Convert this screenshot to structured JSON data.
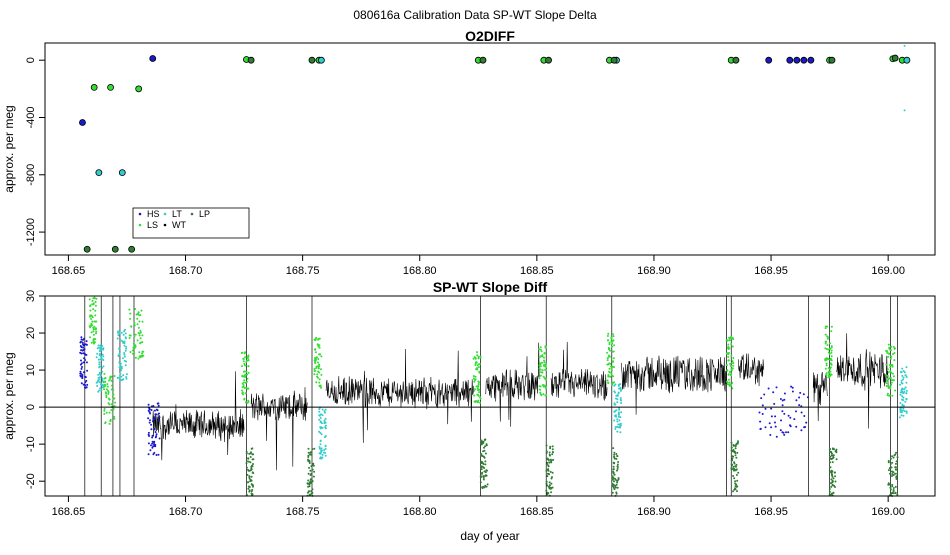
{
  "page_title": "080616a   Calibration Data SP-WT Slope Delta",
  "colors": {
    "HS": "#1a1acc",
    "LS": "#33dd33",
    "LT": "#33cccc",
    "WT": "#000000",
    "LP": "#2e7d32"
  },
  "chart_data": [
    {
      "type": "scatter",
      "title": "O2DIFF",
      "xlabel": "",
      "ylabel": "approx. per meg",
      "xlim": [
        168.64,
        169.02
      ],
      "ylim": [
        -1360,
        120
      ],
      "xticks": [
        168.65,
        168.7,
        168.75,
        168.8,
        168.85,
        168.9,
        168.95,
        169.0
      ],
      "xtick_labels": [
        "168.65",
        "168.70",
        "168.75",
        "168.80",
        "168.85",
        "168.90",
        "168.95",
        "169.00"
      ],
      "yticks": [
        0,
        -400,
        -800,
        -1200
      ],
      "ytick_labels": [
        "0",
        "-400",
        "-800",
        "-1200"
      ],
      "legend": {
        "placement": "bottom-left",
        "entries": [
          {
            "name": "HS",
            "color": "#1a1acc"
          },
          {
            "name": "LS",
            "color": "#33dd33"
          },
          {
            "name": "LT",
            "color": "#33cccc"
          },
          {
            "name": "WT",
            "color": "#000000"
          },
          {
            "name": "LP",
            "color": "#2e7d32"
          }
        ]
      },
      "series": [
        {
          "name": "HS",
          "points": [
            [
              168.656,
              -435
            ],
            [
              168.686,
              12
            ],
            [
              168.949,
              0
            ],
            [
              168.958,
              0
            ],
            [
              168.961,
              0
            ],
            [
              168.964,
              0
            ],
            [
              168.967,
              0
            ]
          ]
        },
        {
          "name": "LS",
          "points": [
            [
              168.661,
              -190
            ],
            [
              168.668,
              -190
            ],
            [
              168.68,
              -200
            ],
            [
              168.726,
              5
            ],
            [
              168.757,
              0
            ],
            [
              168.825,
              0
            ],
            [
              168.853,
              0
            ],
            [
              168.881,
              0
            ],
            [
              168.933,
              0
            ],
            [
              168.975,
              0
            ],
            [
              169.002,
              10
            ],
            [
              169.006,
              0
            ]
          ]
        },
        {
          "name": "LT",
          "points": [
            [
              168.663,
              -785
            ],
            [
              168.673,
              -785
            ],
            [
              168.758,
              0
            ],
            [
              168.884,
              0
            ],
            [
              169.008,
              0
            ]
          ]
        },
        {
          "name": "LP",
          "points": [
            [
              168.658,
              -1320
            ],
            [
              168.67,
              -1320
            ],
            [
              168.677,
              -1320
            ],
            [
              168.728,
              0
            ],
            [
              168.754,
              0
            ],
            [
              168.827,
              0
            ],
            [
              168.855,
              0
            ],
            [
              168.883,
              0
            ],
            [
              168.935,
              0
            ],
            [
              168.976,
              0
            ],
            [
              169.003,
              15
            ]
          ]
        }
      ]
    },
    {
      "type": "line",
      "title": "SP-WT Slope Diff",
      "xlabel": "day of year",
      "ylabel": "approx. per meg",
      "xlim": [
        168.64,
        169.02
      ],
      "ylim": [
        -24,
        30
      ],
      "xticks": [
        168.65,
        168.7,
        168.75,
        168.8,
        168.85,
        168.9,
        168.95,
        169.0
      ],
      "xtick_labels": [
        "168.65",
        "168.70",
        "168.75",
        "168.80",
        "168.85",
        "168.90",
        "168.95",
        "169.00"
      ],
      "yticks": [
        -20,
        -10,
        0,
        10,
        20,
        30
      ],
      "ytick_labels": [
        "-20",
        "-10",
        "0",
        "10",
        "20",
        "30"
      ],
      "reference_line_y": 0,
      "segments": [
        {
          "x0": 168.686,
          "x1": 168.725,
          "mean": -5,
          "spread": 4
        },
        {
          "x0": 168.728,
          "x1": 168.752,
          "mean": 0,
          "spread": 4
        },
        {
          "x0": 168.76,
          "x1": 168.823,
          "mean": 4,
          "spread": 4
        },
        {
          "x0": 168.828,
          "x1": 168.851,
          "mean": 6,
          "spread": 4
        },
        {
          "x0": 168.856,
          "x1": 168.88,
          "mean": 6,
          "spread": 4
        },
        {
          "x0": 168.886,
          "x1": 168.931,
          "mean": 9,
          "spread": 5
        },
        {
          "x0": 168.936,
          "x1": 168.947,
          "mean": 10,
          "spread": 4
        },
        {
          "x0": 168.968,
          "x1": 168.974,
          "mean": 5,
          "spread": 5
        },
        {
          "x0": 168.978,
          "x1": 169.0,
          "mean": 10,
          "spread": 5
        }
      ],
      "colored_series": [
        {
          "name": "HS",
          "ranges": [
            [
              168.655,
              168.658,
              12
            ],
            [
              168.684,
              168.689,
              -6
            ],
            [
              168.945,
              168.967,
              -1
            ]
          ]
        },
        {
          "name": "LS",
          "ranges": [
            [
              168.659,
              168.662,
              24
            ],
            [
              168.665,
              168.67,
              2
            ],
            [
              168.676,
              168.682,
              20
            ],
            [
              168.724,
              168.727,
              8
            ],
            [
              168.755,
              168.758,
              12
            ],
            [
              168.823,
              168.826,
              8
            ],
            [
              168.851,
              168.854,
              10
            ],
            [
              168.88,
              168.883,
              13
            ],
            [
              168.931,
              168.934,
              12
            ],
            [
              168.973,
              168.976,
              15
            ],
            [
              168.999,
              169.003,
              10
            ]
          ]
        },
        {
          "name": "LT",
          "ranges": [
            [
              168.662,
              168.665,
              10
            ],
            [
              168.671,
              168.675,
              14
            ],
            [
              168.757,
              168.76,
              -7
            ],
            [
              168.883,
              168.886,
              0
            ],
            [
              169.005,
              169.008,
              4
            ]
          ]
        },
        {
          "name": "LP",
          "ranges": [
            [
              168.726,
              168.729,
              -18
            ],
            [
              168.752,
              168.755,
              -18
            ],
            [
              168.826,
              168.829,
              -15
            ],
            [
              168.854,
              168.857,
              -17
            ],
            [
              168.882,
              168.885,
              -18
            ],
            [
              168.933,
              168.936,
              -16
            ],
            [
              168.975,
              168.978,
              -18
            ],
            [
              169.0,
              169.004,
              -19
            ]
          ]
        }
      ],
      "spikes": [
        168.657,
        168.664,
        168.669,
        168.672,
        168.678,
        168.726,
        168.754,
        168.826,
        168.854,
        168.882,
        168.931,
        168.933,
        168.966,
        168.975,
        169.001,
        169.004
      ]
    }
  ]
}
